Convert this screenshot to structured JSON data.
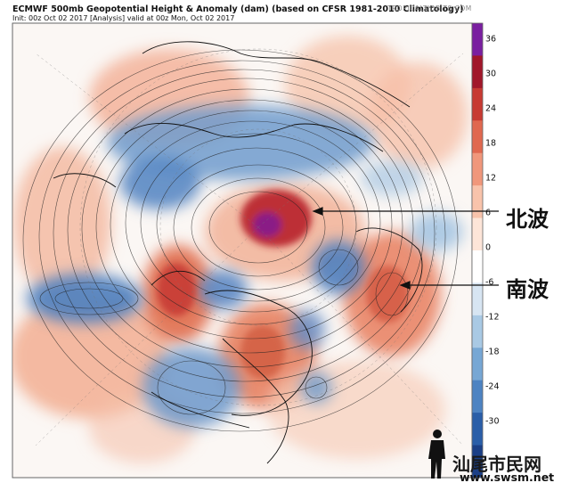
{
  "header": {
    "title": "ECMWF 500mb Geopotential Height & Anomaly (dam) (based on CFSR 1981-2010 Climatology)",
    "subtitle": "Init: 00z Oct 02 2017  [Analysis]  valid at 00z Mon, Oct 02 2017",
    "site": "TROPICALTIDBITS.COM"
  },
  "colorbar": {
    "ticks": [
      "36",
      "30",
      "24",
      "18",
      "12",
      "6",
      "0",
      "-6",
      "-12",
      "-18",
      "-24",
      "-30"
    ],
    "colors": [
      "#7a1fa0",
      "#a1172a",
      "#c73a32",
      "#e0684f",
      "#f0977b",
      "#f8c3ab",
      "#fde5d8",
      "#ffffff",
      "#d7e5f2",
      "#a9c9e4",
      "#77a7d4",
      "#4d83c2",
      "#2a5ea8",
      "#1b3f86"
    ]
  },
  "annotations": {
    "north_wave": "北波",
    "south_wave": "南波"
  },
  "watermark": {
    "text": "汕尾市民网",
    "url": "www.swsm.net"
  },
  "icons": [
    "person-silhouette-icon"
  ]
}
